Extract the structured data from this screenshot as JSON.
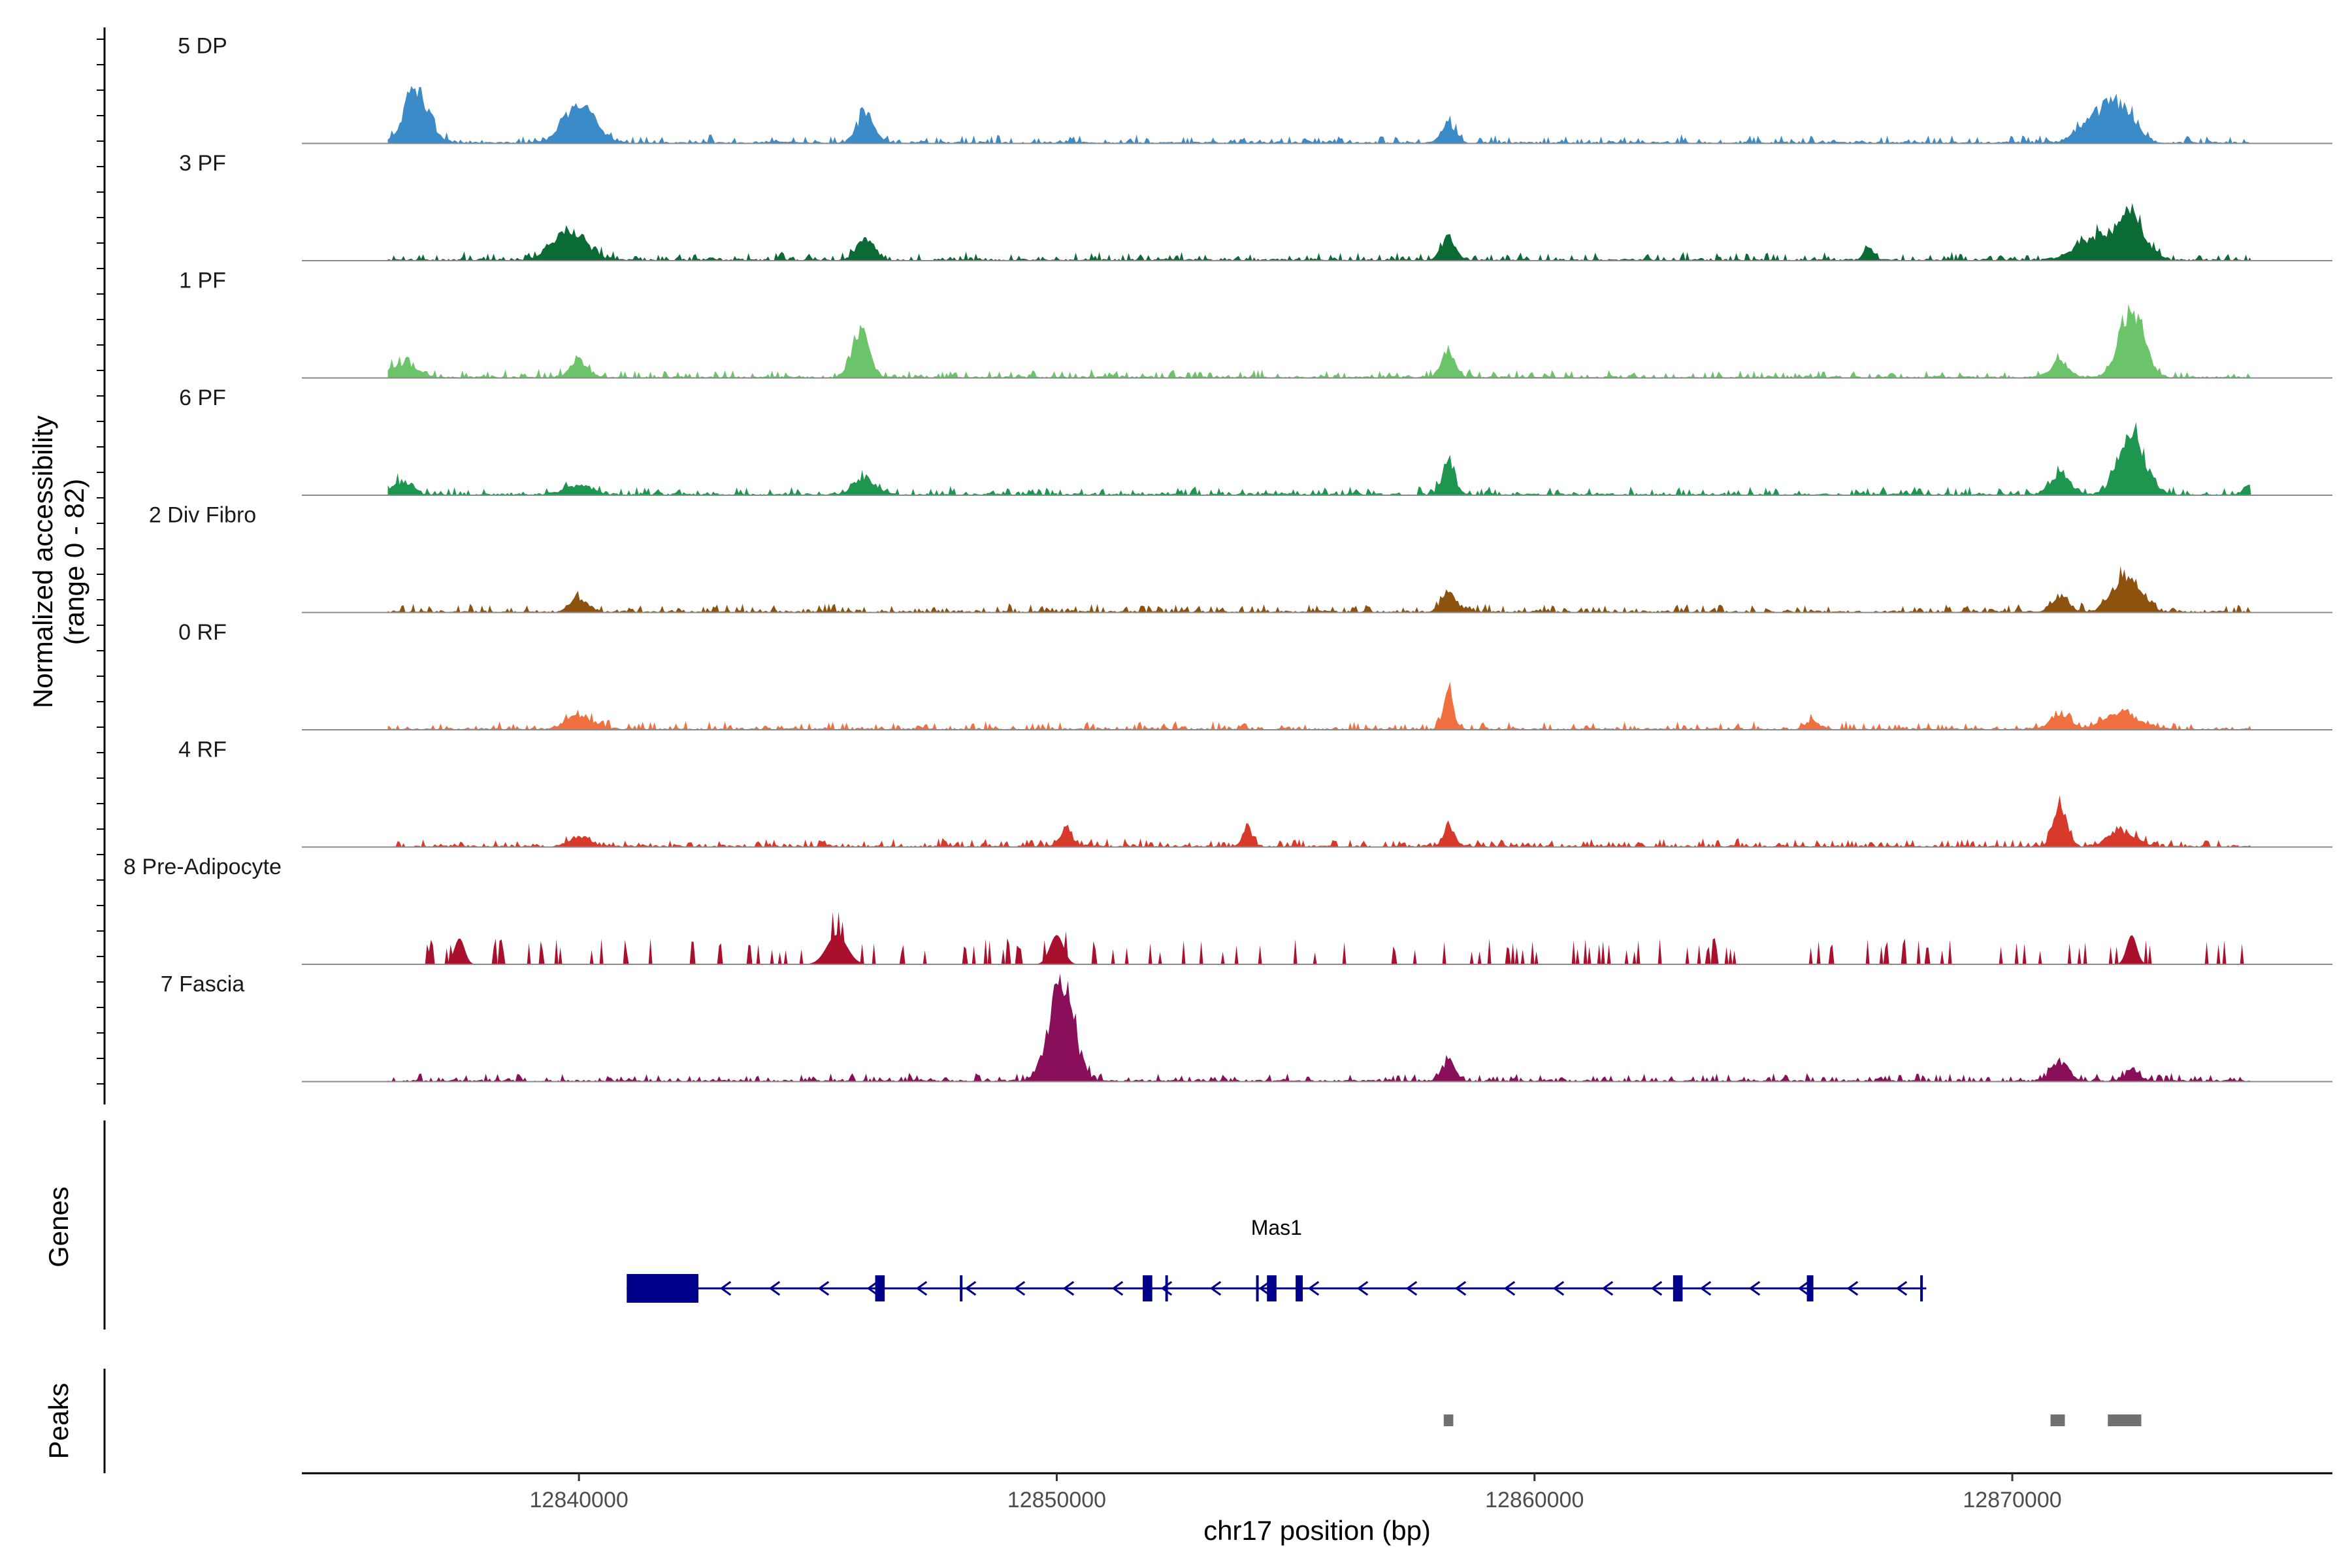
{
  "chart_data": {
    "type": "area",
    "title": "",
    "chromosome": "chr17",
    "xlabel": "chr17 position (bp)",
    "ylabel_line1": "Normalized accessibility",
    "ylabel_line2": "(range 0 - 82)",
    "y_range": [
      0,
      82
    ],
    "xlim": [
      12834200,
      12876700
    ],
    "data_extent": [
      12836000,
      12875000
    ],
    "x_ticks": [
      {
        "value": 12840000,
        "label": "12840000"
      },
      {
        "value": 12850000,
        "label": "12850000"
      },
      {
        "value": 12860000,
        "label": "12860000"
      },
      {
        "value": 12870000,
        "label": "12870000"
      }
    ],
    "tracks": [
      {
        "name": "5 DP",
        "color": "#3a8bc8",
        "peaks": [
          [
            12836600,
            82,
            350
          ],
          [
            12840000,
            60,
            450
          ],
          [
            12846000,
            45,
            250
          ],
          [
            12858200,
            30,
            200
          ],
          [
            12871800,
            40,
            500
          ],
          [
            12872300,
            45,
            400
          ]
        ]
      },
      {
        "name": "3 PF",
        "color": "#0b6b35",
        "peaks": [
          [
            12839800,
            45,
            500
          ],
          [
            12846000,
            35,
            250
          ],
          [
            12858200,
            35,
            200
          ],
          [
            12867000,
            20,
            150
          ],
          [
            12871800,
            35,
            600
          ],
          [
            12872500,
            60,
            400
          ]
        ]
      },
      {
        "name": "1 PF",
        "color": "#6cc46a",
        "peaks": [
          [
            12836300,
            20,
            400
          ],
          [
            12840000,
            25,
            250
          ],
          [
            12845900,
            75,
            250
          ],
          [
            12858200,
            40,
            200
          ],
          [
            12871000,
            25,
            250
          ],
          [
            12872500,
            110,
            350
          ]
        ]
      },
      {
        "name": "6 PF",
        "color": "#1e9650",
        "peaks": [
          [
            12836300,
            20,
            300
          ],
          [
            12840000,
            15,
            400
          ],
          [
            12846000,
            25,
            300
          ],
          [
            12858200,
            45,
            200
          ],
          [
            12871000,
            30,
            300
          ],
          [
            12872500,
            90,
            400
          ],
          [
            12875000,
            15,
            200
          ]
        ]
      },
      {
        "name": "2 Div Fibro",
        "color": "#8c520e",
        "peaks": [
          [
            12840000,
            20,
            250
          ],
          [
            12858200,
            30,
            200
          ],
          [
            12871000,
            25,
            250
          ],
          [
            12872400,
            55,
            400
          ]
        ]
      },
      {
        "name": "0 RF",
        "color": "#f07040",
        "peaks": [
          [
            12840000,
            20,
            400
          ],
          [
            12858200,
            55,
            150
          ],
          [
            12865800,
            12,
            200
          ],
          [
            12871000,
            20,
            300
          ],
          [
            12872300,
            25,
            500
          ]
        ]
      },
      {
        "name": "4 RF",
        "color": "#d73a2a",
        "peaks": [
          [
            12840000,
            15,
            300
          ],
          [
            12850200,
            25,
            200
          ],
          [
            12854000,
            25,
            150
          ],
          [
            12858200,
            30,
            150
          ],
          [
            12871000,
            60,
            200
          ],
          [
            12872300,
            25,
            400
          ]
        ]
      },
      {
        "name": "8 Pre-Adipocyte",
        "color": "#a8102e",
        "peaks": [
          [
            12837500,
            40,
            150
          ],
          [
            12845400,
            45,
            300
          ],
          [
            12850000,
            45,
            200
          ],
          [
            12872500,
            45,
            150
          ]
        ]
      },
      {
        "name": "7 Fascia",
        "color": "#8a0f5a",
        "peaks": [
          [
            12850100,
            160,
            350
          ],
          [
            12858200,
            30,
            200
          ],
          [
            12871000,
            30,
            250
          ],
          [
            12872500,
            20,
            200
          ]
        ]
      }
    ],
    "genes_label": "Genes",
    "gene": {
      "name": "Mas1",
      "strand": "-",
      "start": 12841000,
      "end": 12868200,
      "exons": [
        [
          12841000,
          12842500
        ],
        [
          12846200,
          12846400
        ],
        [
          12851800,
          12852000
        ],
        [
          12854400,
          12854600
        ],
        [
          12855000,
          12855150
        ],
        [
          12862900,
          12863100
        ],
        [
          12865700,
          12865800
        ]
      ],
      "small_exons": [
        12848000,
        12852300,
        12854200,
        12868100
      ]
    },
    "peaks_label": "Peaks",
    "peak_regions": [
      [
        12858100,
        12858300
      ],
      [
        12870800,
        12871100
      ],
      [
        12872000,
        12872700
      ]
    ]
  }
}
